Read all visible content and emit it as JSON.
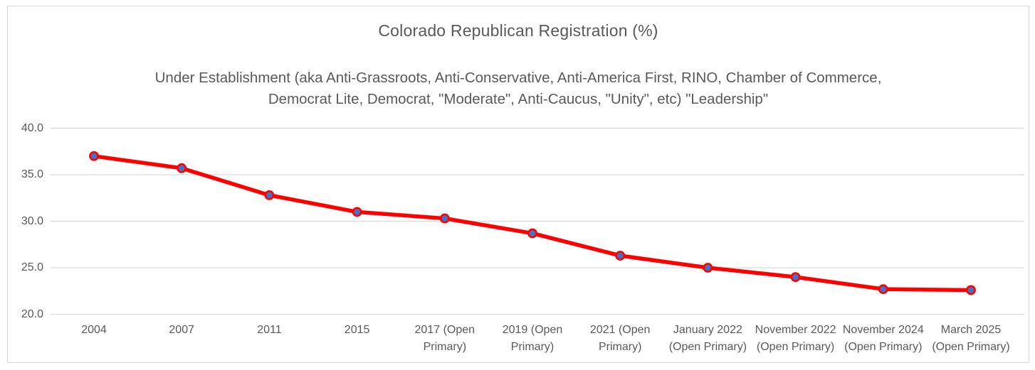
{
  "frame": {
    "background": "#FFFFFF",
    "border_color": "#D9D9D9"
  },
  "chart_data": {
    "type": "line",
    "title": "Colorado Republican Registration (%)",
    "subtitle": "Under Establishment (aka Anti-Grassroots, Anti-Conservative, Anti-America First, RINO, Chamber of Commerce, Democrat Lite, Democrat, \"Moderate\", Anti-Caucus, \"Unity\", etc) \"Leadership\"",
    "subtitle_lines": [
      "Under Establishment (aka Anti-Grassroots, Anti-Conservative, Anti-America First, RINO, Chamber of Commerce,",
      "Democrat Lite, Democrat, \"Moderate\", Anti-Caucus, \"Unity\", etc) \"Leadership\""
    ],
    "xlabel": "",
    "ylabel": "",
    "categories": [
      "2004",
      "2007",
      "2011",
      "2015",
      "2017 (Open Primary)",
      "2019 (Open Primary)",
      "2021 (Open Primary)",
      "January 2022 (Open Primary)",
      "November 2022 (Open Primary)",
      "November 2024 (Open Primary)",
      "March 2025 (Open Primary)"
    ],
    "tick_label_lines": [
      [
        "2004"
      ],
      [
        "2007"
      ],
      [
        "2011"
      ],
      [
        "2015"
      ],
      [
        "2017 (Open",
        "Primary)"
      ],
      [
        "2019 (Open",
        "Primary)"
      ],
      [
        "2021 (Open",
        "Primary)"
      ],
      [
        "January 2022",
        "(Open Primary)"
      ],
      [
        "November 2022",
        "(Open Primary)"
      ],
      [
        "November 2024",
        "(Open Primary)"
      ],
      [
        "March 2025",
        "(Open Primary)"
      ]
    ],
    "series": [
      {
        "name": "Republican Registration %",
        "values": [
          37.0,
          35.7,
          32.8,
          31.0,
          30.3,
          28.7,
          26.3,
          25.0,
          24.0,
          22.7,
          22.6
        ]
      }
    ],
    "ylim": [
      20.0,
      40.0
    ],
    "yticks": [
      40.0,
      35.0,
      30.0,
      25.0,
      20.0
    ],
    "ytick_labels": [
      "40.0",
      "35.0",
      "30.0",
      "25.0",
      "20.0"
    ],
    "grid": true,
    "legend_position": "none",
    "colors": {
      "line": "#FF0000",
      "marker_fill": "#4472C4",
      "marker_border": "#FF0000",
      "grid": "#D9D9D9",
      "text": "#595959"
    }
  }
}
